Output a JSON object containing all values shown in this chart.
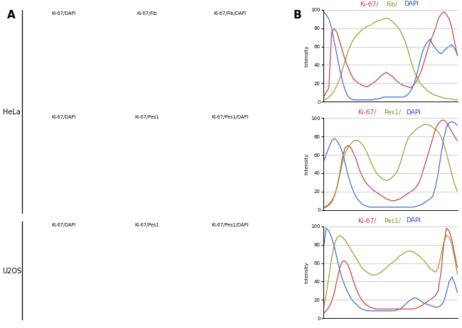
{
  "title_A": "A",
  "title_B": "B",
  "col_labels": [
    [
      "Ki-67/DAPI",
      "Ki-67/Fib",
      "Ki-67/Fib/DAPI"
    ],
    [
      "Ki-67/DAPI",
      "Ki-67/Pes1",
      "Ki-67/Pes1/DAPI"
    ],
    [
      "Ki-67/DAPI",
      "Ki-67/Pes1",
      "Ki-67/Pes1/DAPI"
    ]
  ],
  "side_labels": [
    "HeLa",
    "U2OS"
  ],
  "plot_title_parts": [
    [
      [
        "Ki-67/",
        "#cc3333"
      ],
      [
        "Fib/",
        "#888822"
      ],
      [
        "DAPI",
        "#2244cc"
      ]
    ],
    [
      [
        "Ki-67/",
        "#cc3333"
      ],
      [
        "Pes1/",
        "#888822"
      ],
      [
        "DAPI",
        "#2244cc"
      ]
    ],
    [
      [
        "Ki-67/",
        "#cc3333"
      ],
      [
        "Pes1/",
        "#888822"
      ],
      [
        "DAPI",
        "#2244cc"
      ]
    ]
  ],
  "ylabel": "Intensity",
  "ylim": [
    0,
    100
  ],
  "yticks": [
    0,
    20,
    40,
    60,
    80,
    100
  ],
  "line_colors": [
    "#cc3333",
    "#999922",
    "#3366cc"
  ],
  "background_color": "#ffffff",
  "plot1": {
    "red": [
      5,
      10,
      15,
      75,
      80,
      75,
      65,
      55,
      45,
      38,
      30,
      25,
      22,
      20,
      18,
      17,
      16,
      18,
      20,
      22,
      25,
      28,
      30,
      32,
      30,
      28,
      25,
      22,
      20,
      18,
      17,
      16,
      15,
      18,
      22,
      28,
      35,
      45,
      55,
      65,
      72,
      80,
      90,
      95,
      98,
      95,
      90,
      80,
      65,
      50
    ],
    "olive": [
      2,
      3,
      5,
      8,
      12,
      18,
      25,
      35,
      45,
      55,
      62,
      68,
      72,
      75,
      78,
      80,
      82,
      83,
      85,
      87,
      88,
      89,
      90,
      91,
      90,
      88,
      85,
      82,
      78,
      72,
      65,
      55,
      45,
      35,
      28,
      22,
      18,
      15,
      12,
      10,
      8,
      7,
      6,
      5,
      4,
      4,
      3,
      3,
      2,
      2
    ],
    "blue": [
      98,
      95,
      90,
      80,
      65,
      50,
      35,
      22,
      12,
      6,
      3,
      2,
      2,
      2,
      2,
      2,
      2,
      2,
      2,
      3,
      3,
      4,
      5,
      5,
      5,
      5,
      5,
      5,
      5,
      5,
      6,
      8,
      12,
      18,
      28,
      40,
      52,
      60,
      65,
      68,
      62,
      58,
      54,
      52,
      55,
      58,
      60,
      62,
      58,
      52
    ]
  },
  "plot2": {
    "red": [
      2,
      4,
      6,
      10,
      15,
      25,
      40,
      58,
      68,
      70,
      68,
      62,
      55,
      45,
      38,
      32,
      28,
      25,
      22,
      20,
      18,
      16,
      14,
      12,
      11,
      10,
      10,
      11,
      12,
      14,
      16,
      18,
      20,
      22,
      25,
      30,
      38,
      48,
      58,
      68,
      78,
      88,
      94,
      97,
      98,
      95,
      90,
      85,
      80,
      75
    ],
    "olive": [
      2,
      3,
      5,
      8,
      15,
      25,
      38,
      52,
      62,
      68,
      72,
      75,
      76,
      75,
      72,
      68,
      62,
      55,
      48,
      42,
      38,
      35,
      33,
      32,
      33,
      35,
      38,
      42,
      50,
      60,
      70,
      78,
      82,
      85,
      88,
      90,
      92,
      93,
      93,
      92,
      90,
      88,
      85,
      80,
      72,
      62,
      50,
      38,
      28,
      20
    ],
    "blue": [
      52,
      60,
      68,
      75,
      78,
      75,
      70,
      62,
      50,
      38,
      28,
      20,
      14,
      10,
      7,
      5,
      4,
      3,
      3,
      3,
      3,
      3,
      3,
      3,
      3,
      3,
      3,
      3,
      3,
      3,
      3,
      3,
      3,
      3,
      4,
      5,
      6,
      8,
      10,
      12,
      15,
      25,
      40,
      60,
      78,
      90,
      95,
      96,
      95,
      92
    ]
  },
  "plot3": {
    "red": [
      5,
      8,
      12,
      18,
      28,
      42,
      55,
      62,
      62,
      58,
      50,
      40,
      32,
      25,
      20,
      16,
      14,
      12,
      11,
      10,
      10,
      10,
      10,
      10,
      10,
      10,
      10,
      10,
      10,
      10,
      10,
      10,
      10,
      10,
      11,
      12,
      14,
      16,
      18,
      20,
      22,
      25,
      30,
      50,
      80,
      98,
      95,
      85,
      70,
      55
    ],
    "olive": [
      10,
      25,
      45,
      65,
      80,
      88,
      90,
      88,
      85,
      80,
      75,
      70,
      65,
      60,
      55,
      52,
      50,
      48,
      47,
      47,
      48,
      50,
      52,
      55,
      58,
      60,
      62,
      65,
      68,
      70,
      72,
      73,
      73,
      72,
      70,
      68,
      65,
      62,
      58,
      54,
      52,
      50,
      55,
      68,
      82,
      90,
      88,
      80,
      65,
      48
    ],
    "blue": [
      75,
      98,
      95,
      88,
      78,
      65,
      52,
      42,
      34,
      28,
      22,
      18,
      15,
      12,
      10,
      9,
      8,
      8,
      8,
      8,
      8,
      8,
      8,
      8,
      8,
      8,
      8,
      9,
      10,
      12,
      15,
      18,
      20,
      22,
      22,
      20,
      18,
      16,
      15,
      14,
      13,
      12,
      12,
      14,
      18,
      28,
      40,
      45,
      38,
      28
    ]
  }
}
